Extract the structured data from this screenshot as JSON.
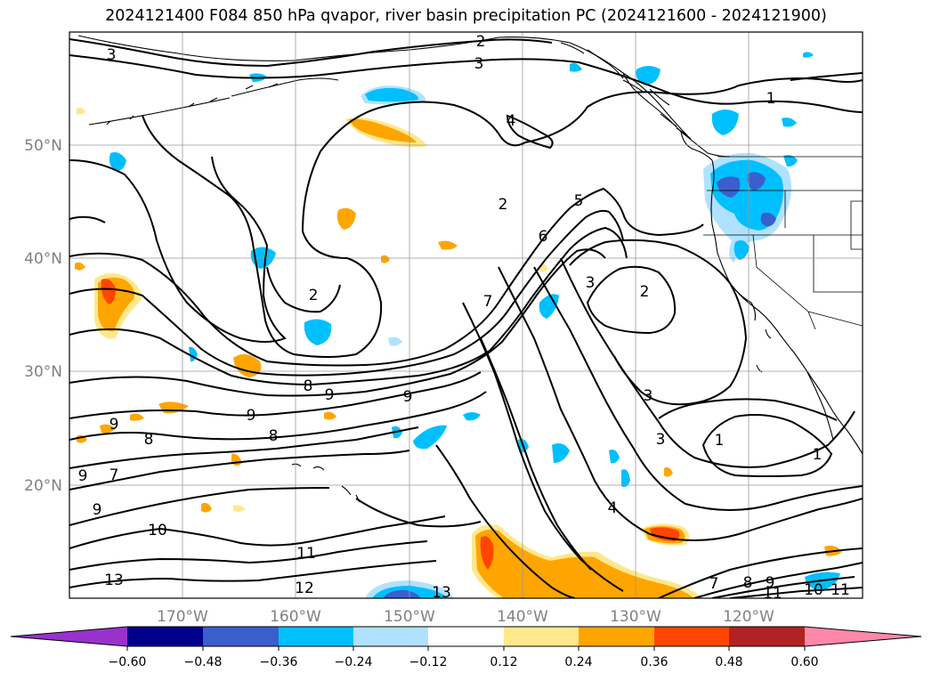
{
  "title": "2024121400 F084 850 hPa qvapor, river basin precipitation PC (2024121600 - 2024121900)",
  "map": {
    "lat_ticks": [
      "50°N",
      "40°N",
      "30°N",
      "20°N"
    ],
    "lon_ticks": [
      "170°W",
      "160°W",
      "150°W",
      "140°W",
      "130°W",
      "120°W"
    ],
    "contour_labels": [
      {
        "text": "3"
      },
      {
        "text": "2"
      },
      {
        "text": "3"
      },
      {
        "text": "1"
      },
      {
        "text": "4"
      },
      {
        "text": "5"
      },
      {
        "text": "6"
      },
      {
        "text": "2"
      },
      {
        "text": "7"
      },
      {
        "text": "3"
      },
      {
        "text": "2"
      },
      {
        "text": "2"
      },
      {
        "text": "8"
      },
      {
        "text": "9"
      },
      {
        "text": "9"
      },
      {
        "text": "9"
      },
      {
        "text": "9"
      },
      {
        "text": "8"
      },
      {
        "text": "8"
      },
      {
        "text": "3"
      },
      {
        "text": "3"
      },
      {
        "text": "1"
      },
      {
        "text": "1"
      },
      {
        "text": "7"
      },
      {
        "text": "9"
      },
      {
        "text": "9"
      },
      {
        "text": "10"
      },
      {
        "text": "4"
      },
      {
        "text": "11"
      },
      {
        "text": "13"
      },
      {
        "text": "12"
      },
      {
        "text": "13"
      },
      {
        "text": "7"
      },
      {
        "text": "8"
      },
      {
        "text": "9"
      },
      {
        "text": "11"
      },
      {
        "text": "10"
      },
      {
        "text": "11"
      }
    ]
  },
  "colorbar": {
    "ticks": [
      "−0.60",
      "−0.48",
      "−0.36",
      "−0.24",
      "−0.12",
      "0.12",
      "0.24",
      "0.36",
      "0.48",
      "0.60"
    ],
    "colors": [
      "#9932cc",
      "#00008b",
      "#3a5fcd",
      "#00bfff",
      "#b0e2ff",
      "#ffffff",
      "#ffe88c",
      "#ffa500",
      "#ff4500",
      "#b22222",
      "#ff88aa"
    ]
  },
  "colors": {
    "grid": "#999999",
    "contour": "#000000",
    "tick_text": "#808080"
  }
}
